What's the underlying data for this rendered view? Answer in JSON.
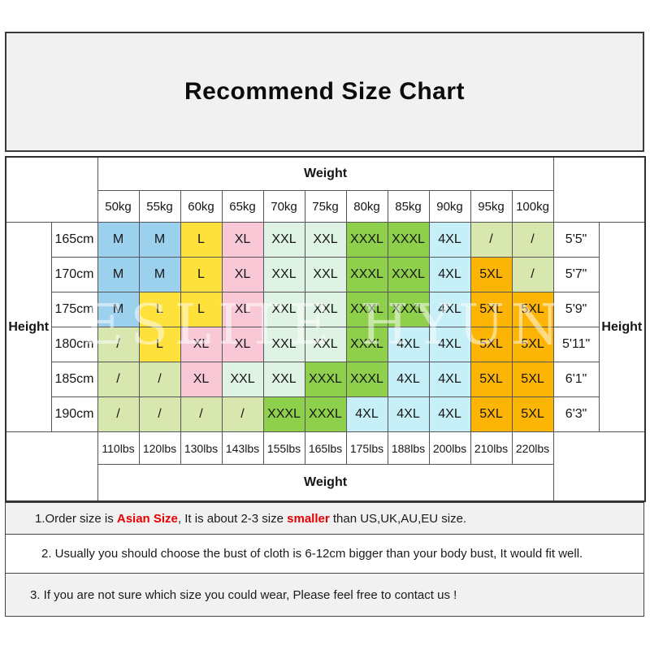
{
  "title": "Recommend Size Chart",
  "watermark": "ESLITE HYUN",
  "palette": {
    "blue": "#9cd1ee",
    "yellow": "#ffe13b",
    "pink": "#f8c8d6",
    "mint": "#def3e4",
    "green": "#8ed04c",
    "cyan": "#c7eff7",
    "olive": "#d7e7ad",
    "orange": "#fcb405",
    "note_red": "#e60000"
  },
  "table": {
    "weight_header_top": "Weight",
    "weight_header_bottom": "Weight",
    "height_header_left": "Height",
    "height_header_right": "Height",
    "kg_labels": [
      "50kg",
      "55kg",
      "60kg",
      "65kg",
      "70kg",
      "75kg",
      "80kg",
      "85kg",
      "90kg",
      "95kg",
      "100kg"
    ],
    "lbs_labels": [
      "110lbs",
      "120lbs",
      "130lbs",
      "143lbs",
      "155lbs",
      "165lbs",
      "175lbs",
      "188lbs",
      "200lbs",
      "210lbs",
      "220lbs"
    ],
    "rows": [
      {
        "cm": "165cm",
        "ft": "5'5\"",
        "cells": [
          {
            "v": "M",
            "c": "blue"
          },
          {
            "v": "M",
            "c": "blue"
          },
          {
            "v": "L",
            "c": "yellow"
          },
          {
            "v": "XL",
            "c": "pink"
          },
          {
            "v": "XXL",
            "c": "mint"
          },
          {
            "v": "XXL",
            "c": "mint"
          },
          {
            "v": "XXXL",
            "c": "green"
          },
          {
            "v": "XXXL",
            "c": "green"
          },
          {
            "v": "4XL",
            "c": "cyan"
          },
          {
            "v": "/",
            "c": "olive"
          },
          {
            "v": "/",
            "c": "olive"
          }
        ]
      },
      {
        "cm": "170cm",
        "ft": "5'7\"",
        "cells": [
          {
            "v": "M",
            "c": "blue"
          },
          {
            "v": "M",
            "c": "blue"
          },
          {
            "v": "L",
            "c": "yellow"
          },
          {
            "v": "XL",
            "c": "pink"
          },
          {
            "v": "XXL",
            "c": "mint"
          },
          {
            "v": "XXL",
            "c": "mint"
          },
          {
            "v": "XXXL",
            "c": "green"
          },
          {
            "v": "XXXL",
            "c": "green"
          },
          {
            "v": "4XL",
            "c": "cyan"
          },
          {
            "v": "5XL",
            "c": "orange"
          },
          {
            "v": "/",
            "c": "olive"
          }
        ]
      },
      {
        "cm": "175cm",
        "ft": "5'9\"",
        "cells": [
          {
            "v": "M",
            "c": "blue"
          },
          {
            "v": "L",
            "c": "yellow"
          },
          {
            "v": "L",
            "c": "yellow"
          },
          {
            "v": "XL",
            "c": "pink"
          },
          {
            "v": "XXL",
            "c": "mint"
          },
          {
            "v": "XXL",
            "c": "mint"
          },
          {
            "v": "XXXL",
            "c": "green"
          },
          {
            "v": "XXXL",
            "c": "green"
          },
          {
            "v": "4XL",
            "c": "cyan"
          },
          {
            "v": "5XL",
            "c": "orange"
          },
          {
            "v": "5XL",
            "c": "orange"
          }
        ]
      },
      {
        "cm": "180cm",
        "ft": "5'11\"",
        "cells": [
          {
            "v": "/",
            "c": "olive"
          },
          {
            "v": "L",
            "c": "yellow"
          },
          {
            "v": "XL",
            "c": "pink"
          },
          {
            "v": "XL",
            "c": "pink"
          },
          {
            "v": "XXL",
            "c": "mint"
          },
          {
            "v": "XXL",
            "c": "mint"
          },
          {
            "v": "XXXL",
            "c": "green"
          },
          {
            "v": "4XL",
            "c": "cyan"
          },
          {
            "v": "4XL",
            "c": "cyan"
          },
          {
            "v": "5XL",
            "c": "orange"
          },
          {
            "v": "5XL",
            "c": "orange"
          }
        ]
      },
      {
        "cm": "185cm",
        "ft": "6'1\"",
        "cells": [
          {
            "v": "/",
            "c": "olive"
          },
          {
            "v": "/",
            "c": "olive"
          },
          {
            "v": "XL",
            "c": "pink"
          },
          {
            "v": "XXL",
            "c": "mint"
          },
          {
            "v": "XXL",
            "c": "mint"
          },
          {
            "v": "XXXL",
            "c": "green"
          },
          {
            "v": "XXXL",
            "c": "green"
          },
          {
            "v": "4XL",
            "c": "cyan"
          },
          {
            "v": "4XL",
            "c": "cyan"
          },
          {
            "v": "5XL",
            "c": "orange"
          },
          {
            "v": "5XL",
            "c": "orange"
          }
        ]
      },
      {
        "cm": "190cm",
        "ft": "6'3\"",
        "cells": [
          {
            "v": "/",
            "c": "olive"
          },
          {
            "v": "/",
            "c": "olive"
          },
          {
            "v": "/",
            "c": "olive"
          },
          {
            "v": "/",
            "c": "olive"
          },
          {
            "v": "XXXL",
            "c": "green"
          },
          {
            "v": "XXXL",
            "c": "green"
          },
          {
            "v": "4XL",
            "c": "cyan"
          },
          {
            "v": "4XL",
            "c": "cyan"
          },
          {
            "v": "4XL",
            "c": "cyan"
          },
          {
            "v": "5XL",
            "c": "orange"
          },
          {
            "v": "5XL",
            "c": "orange"
          }
        ]
      }
    ]
  },
  "notes": [
    {
      "parts": [
        {
          "text": "1.Order size is "
        },
        {
          "text": "Asian Size",
          "red": true
        },
        {
          "text": ", It is about 2-3 size "
        },
        {
          "text": "smaller",
          "red": true
        },
        {
          "text": " than US,UK,AU,EU size."
        }
      ]
    },
    {
      "parts": [
        {
          "text": "2. Usually you should choose the bust of cloth is 6-12cm bigger than your body bust, It would fit well."
        }
      ]
    },
    {
      "parts": [
        {
          "text": "3. If you are not sure which size you could wear, Please feel free to contact us !"
        }
      ]
    }
  ]
}
